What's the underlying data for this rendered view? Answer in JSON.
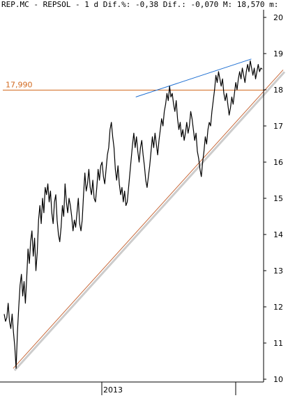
{
  "header": {
    "text": "REP.MC - REPSOL - 1 d Dif.%: -0,38 Dif.: -0,070 M: 18,570 m:"
  },
  "chart_data": {
    "type": "line",
    "title": "REP.MC - REPSOL - 1 d",
    "ylim": [
      10,
      20
    ],
    "yticks": [
      "20",
      "19",
      "18",
      "17",
      "16",
      "15",
      "14",
      "13",
      "12",
      "11",
      "10"
    ],
    "xticks": [
      "2013"
    ],
    "grid": false,
    "annotations": {
      "support_level_label": "17,990",
      "support_level_value": 17.99
    },
    "colors": {
      "price": "#000000",
      "support": "#d2691e",
      "resistance": "#1e6fd2",
      "trend": "#c86a3c",
      "trend_shadow": "#cccccc"
    },
    "series": [
      {
        "values": [
          11.8,
          11.6,
          11.7,
          12.1,
          11.6,
          11.4,
          11.8,
          11.3,
          10.9,
          10.3,
          11.3,
          12.0,
          12.6,
          12.9,
          12.3,
          12.7,
          12.1,
          12.8,
          13.6,
          13.2,
          13.8,
          14.1,
          13.4,
          13.9,
          13.0,
          13.5,
          14.4,
          14.8,
          14.3,
          15.0,
          14.6,
          15.3,
          15.1,
          15.4,
          14.9,
          15.2,
          14.6,
          14.3,
          14.9,
          15.1,
          14.4,
          14.0,
          13.8,
          14.2,
          14.8,
          14.5,
          15.4,
          14.9,
          14.6,
          15.0,
          14.8,
          14.5,
          14.1,
          14.4,
          14.2,
          14.6,
          15.0,
          14.3,
          14.1,
          14.4,
          15.1,
          15.7,
          15.2,
          15.4,
          15.8,
          15.3,
          15.1,
          15.5,
          15.0,
          14.9,
          15.3,
          15.8,
          15.5,
          15.9,
          16.0,
          15.6,
          15.4,
          15.8,
          16.2,
          16.4,
          16.9,
          17.1,
          16.7,
          16.4,
          15.8,
          15.5,
          15.9,
          15.4,
          15.1,
          15.3,
          14.9,
          15.2,
          14.8,
          14.9,
          15.3,
          15.7,
          16.1,
          16.5,
          16.8,
          16.4,
          16.7,
          16.3,
          16.0,
          16.4,
          16.6,
          16.2,
          15.9,
          15.5,
          15.3,
          15.6,
          15.9,
          16.3,
          16.7,
          16.4,
          16.8,
          16.5,
          16.2,
          16.6,
          16.9,
          17.2,
          17.0,
          17.4,
          17.6,
          17.9,
          17.7,
          18.1,
          17.8,
          17.9,
          17.6,
          17.4,
          17.7,
          17.2,
          16.9,
          17.1,
          16.7,
          16.9,
          16.6,
          16.8,
          17.1,
          16.8,
          17.0,
          17.4,
          17.2,
          16.9,
          16.6,
          16.8,
          16.3,
          16.1,
          15.8,
          15.6,
          16.0,
          16.3,
          16.7,
          16.5,
          16.9,
          17.1,
          17.0,
          17.4,
          17.7,
          18.0,
          18.4,
          18.2,
          18.5,
          18.3,
          18.1,
          18.3,
          17.9,
          17.7,
          17.9,
          17.6,
          17.3,
          17.5,
          17.8,
          17.6,
          17.9,
          18.2,
          18.0,
          18.3,
          18.5,
          18.3,
          18.6,
          18.4,
          18.2,
          18.5,
          18.7,
          18.5,
          18.8,
          18.6,
          18.4,
          18.6,
          18.3,
          18.5,
          18.7,
          18.5,
          18.6,
          18.57
        ]
      }
    ],
    "trendlines": [
      {
        "name": "resistance",
        "from": [
          0.51,
          17.8
        ],
        "to": [
          0.953,
          18.85
        ]
      },
      {
        "name": "support",
        "from": [
          0.04,
          10.3
        ],
        "to": [
          1.0,
          18.55
        ]
      }
    ]
  }
}
